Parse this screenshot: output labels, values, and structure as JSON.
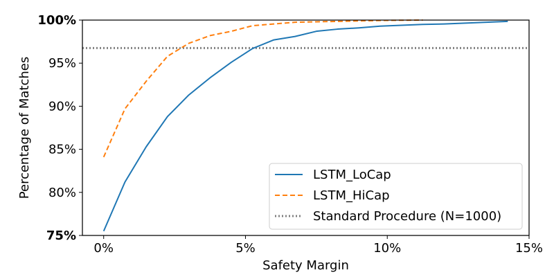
{
  "chart_data": {
    "type": "line",
    "title": "",
    "xlabel": "Safety Margin",
    "ylabel": "Percentage of Matches",
    "xlim": [
      -0.75,
      15
    ],
    "ylim": [
      75,
      100
    ],
    "x_ticks": [
      {
        "value": 0,
        "label": "0%",
        "bold": false
      },
      {
        "value": 5,
        "label": "5%",
        "bold": false
      },
      {
        "value": 10,
        "label": "10%",
        "bold": false
      },
      {
        "value": 15,
        "label": "15%",
        "bold": false
      }
    ],
    "y_ticks": [
      {
        "value": 75,
        "label": "75%",
        "bold": true
      },
      {
        "value": 80,
        "label": "80%",
        "bold": false
      },
      {
        "value": 85,
        "label": "85%",
        "bold": false
      },
      {
        "value": 90,
        "label": "90%",
        "bold": false
      },
      {
        "value": 95,
        "label": "95%",
        "bold": false
      },
      {
        "value": 100,
        "label": "100%",
        "bold": true
      }
    ],
    "grid": false,
    "legend_position": "lower-right",
    "series": [
      {
        "name": "LSTM_LoCap",
        "color": "#1f77b4",
        "style": "solid",
        "x": [
          0,
          0.75,
          1.5,
          2.25,
          3.0,
          3.75,
          4.5,
          5.25,
          6.0,
          6.75,
          7.5,
          8.25,
          9.0,
          9.75,
          10.5,
          11.25,
          12.0,
          12.75,
          13.5,
          14.25
        ],
        "y": [
          75.5,
          81.2,
          85.3,
          88.8,
          91.3,
          93.3,
          95.1,
          96.7,
          97.7,
          98.1,
          98.7,
          98.95,
          99.1,
          99.3,
          99.4,
          99.5,
          99.55,
          99.65,
          99.75,
          99.85
        ]
      },
      {
        "name": "LSTM_HiCap",
        "color": "#ff7f0e",
        "style": "dashed",
        "x": [
          0,
          0.75,
          1.5,
          2.25,
          3.0,
          3.75,
          4.5,
          5.25,
          6.0,
          6.75,
          7.5,
          8.25,
          9.0,
          9.75,
          10.5,
          11.25
        ],
        "y": [
          84.1,
          89.7,
          92.9,
          95.8,
          97.3,
          98.2,
          98.7,
          99.35,
          99.55,
          99.75,
          99.8,
          99.85,
          99.9,
          99.95,
          99.98,
          100.0
        ]
      }
    ],
    "reference_lines": [
      {
        "name": "Standard Procedure (N=1000)",
        "color": "#808080",
        "style": "dotted",
        "y": 96.75
      }
    ]
  }
}
